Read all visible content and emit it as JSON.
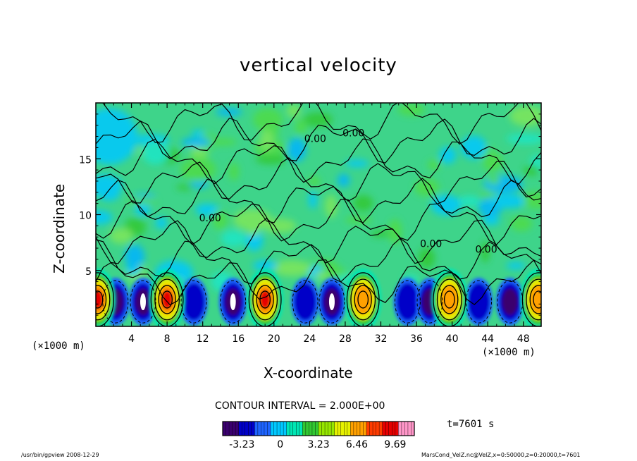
{
  "chart_data": {
    "type": "heatmap",
    "title": "vertical velocity",
    "xlabel": "X-coordinate",
    "ylabel": "Z-coordinate",
    "x_unit_label_left": "(×1000 m)",
    "x_unit_label_right": "(×1000 m)",
    "xlim": [
      0,
      50
    ],
    "ylim": [
      0,
      20
    ],
    "x_ticks": [
      "4",
      "8",
      "12",
      "16",
      "20",
      "24",
      "28",
      "32",
      "36",
      "40",
      "44",
      "48"
    ],
    "y_ticks": [
      "5",
      "10",
      "15"
    ],
    "contour_labels": [
      "0.00",
      "0.00",
      "0.00",
      "0.00",
      "0.00"
    ],
    "contour_interval_text": "CONTOUR INTERVAL = 2.000E+00",
    "colorbar": {
      "min": -4.85,
      "max": 11.3,
      "tick_labels": [
        "-3.23",
        "0",
        "3.23",
        "6.46",
        "9.69"
      ],
      "tick_values": [
        -3.23,
        0,
        3.23,
        6.46,
        9.69
      ],
      "colors": [
        "#3a006e",
        "#0000c8",
        "#1e64ff",
        "#00c8ff",
        "#00e6b4",
        "#32c832",
        "#96e600",
        "#e6f000",
        "#ffa000",
        "#ff3c00",
        "#e60000",
        "#ff96c8"
      ]
    },
    "background_color": "#3ed48a",
    "updraft_cells_x": [
      0.2,
      8,
      19,
      30,
      39.7,
      49.7
    ],
    "updraft_peaks": [
      9.0,
      9.7,
      9.6,
      8.0,
      8.5,
      8.8
    ],
    "downdraft_cells_x": [
      2.2,
      5.3,
      11,
      15.4,
      23.5,
      26.5,
      35,
      37.5,
      43,
      46.5
    ],
    "downdraft_troughs": [
      -3.5,
      -4.8,
      -2.5,
      -4.8,
      -2.5,
      -4.8,
      -2.8,
      -3.8,
      -2.5,
      -3.0
    ]
  },
  "time_label": "t=7601 s",
  "footer": {
    "left": "/usr/bin/gpview   2008-12-29",
    "right": "MarsCond_VelZ.nc@VelZ,x=0:50000,z=0:20000,t=7601"
  }
}
